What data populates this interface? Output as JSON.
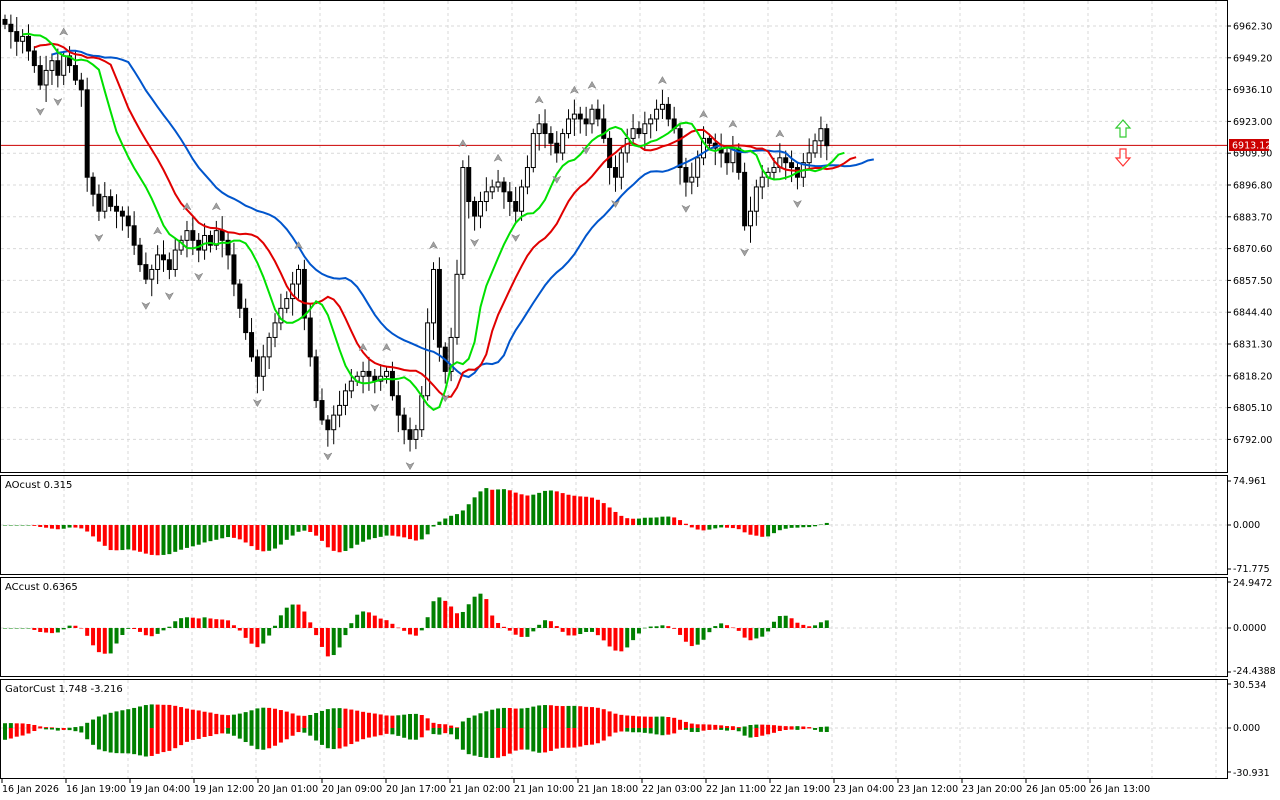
{
  "colors": {
    "background": "#ffffff",
    "grid": "#d9d9d9",
    "frame": "#000000",
    "candle": "#000000",
    "jaw": "#0055cc",
    "teeth": "#e00000",
    "lips": "#00e000",
    "price_line": "#cc0000",
    "price_tag_bg": "#cc0000",
    "price_tag_text": "#ffffff",
    "hist_up": "#008000",
    "hist_down": "#ff0000",
    "fractal": "#a0a0a0",
    "arrow_up": "#33cc33",
    "arrow_down": "#ff3333"
  },
  "main_axis": {
    "labels": [
      "6962.30",
      "6949.20",
      "6936.10",
      "6923.00",
      "6909.90",
      "6896.80",
      "6883.70",
      "6870.60",
      "6857.50",
      "6844.40",
      "6831.30",
      "6818.20",
      "6805.10",
      "6792.00"
    ],
    "current_price": "6913.12"
  },
  "ao_panel": {
    "title": "AOcust 0.315",
    "axis_labels": [
      "74.961",
      "0.000",
      "-71.775"
    ]
  },
  "ac_panel": {
    "title": "ACcust 0.6365",
    "axis_labels": [
      "24.9472",
      "0.0000",
      "-24.4388"
    ]
  },
  "gator_panel": {
    "title": "GatorCust 1.748 -3.216",
    "axis_labels": [
      "30.534",
      "0.000",
      "-30.931"
    ]
  },
  "time_axis": [
    "16 Jan 2026",
    "16 Jan 19:00",
    "19 Jan 04:00",
    "19 Jan 12:00",
    "20 Jan 01:00",
    "20 Jan 09:00",
    "20 Jan 17:00",
    "21 Jan 02:00",
    "21 Jan 10:00",
    "21 Jan 18:00",
    "22 Jan 03:00",
    "22 Jan 11:00",
    "22 Jan 19:00",
    "23 Jan 04:00",
    "23 Jan 12:00",
    "23 Jan 20:00",
    "26 Jan 05:00",
    "26 Jan 13:00"
  ],
  "chart_data": {
    "type": "candlestick",
    "candle_close": [
      6963,
      6960,
      6956,
      6958,
      6952,
      6946,
      6938,
      6944,
      6948,
      6942,
      6950,
      6946,
      6940,
      6936,
      6900,
      6893,
      6886,
      6892,
      6888,
      6886,
      6884,
      6880,
      6872,
      6864,
      6858,
      6862,
      6868,
      6866,
      6862,
      6870,
      6874,
      6878,
      6874,
      6870,
      6876,
      6872,
      6878,
      6874,
      6868,
      6856,
      6846,
      6836,
      6826,
      6818,
      6826,
      6834,
      6840,
      6846,
      6850,
      6856,
      6862,
      6842,
      6826,
      6808,
      6800,
      6796,
      6802,
      6806,
      6812,
      6816,
      6818,
      6820,
      6818,
      6816,
      6818,
      6820,
      6810,
      6802,
      6796,
      6792,
      6796,
      6810,
      6840,
      6862,
      6830,
      6820,
      6834,
      6860,
      6904,
      6890,
      6884,
      6890,
      6894,
      6896,
      6898,
      6894,
      6890,
      6886,
      6896,
      6904,
      6918,
      6922,
      6918,
      6914,
      6910,
      6918,
      6924,
      6926,
      6924,
      6922,
      6928,
      6924,
      6916,
      6904,
      6900,
      6910,
      6916,
      6920,
      6918,
      6922,
      6924,
      6928,
      6930,
      6924,
      6920,
      6904,
      6898,
      6900,
      6908,
      6916,
      6914,
      6912,
      6910,
      6906,
      6912,
      6902,
      6880,
      6886,
      6896,
      6900,
      6902,
      6904,
      6908,
      6906,
      6904,
      6900,
      6906,
      6910,
      6915,
      6920,
      6913
    ]
  }
}
